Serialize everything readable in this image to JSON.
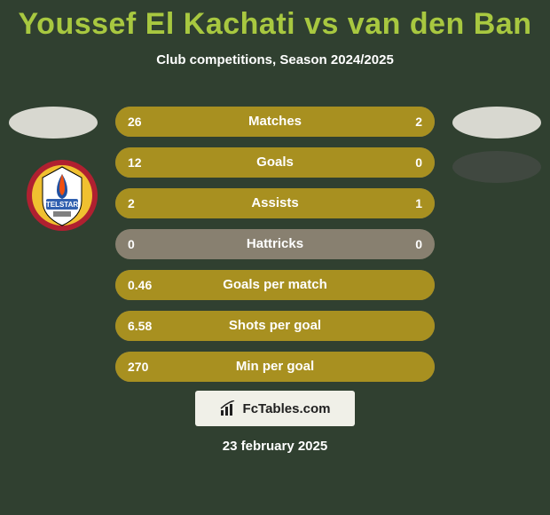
{
  "header": {
    "title": "Youssef El Kachati vs van den Ban",
    "subtitle": "Club competitions, Season 2024/2025"
  },
  "colors": {
    "page_bg": "#304030",
    "title_color": "#a8c840",
    "bar_fill": "#a89020",
    "bar_bg": "#888070",
    "badge_bg": "#d8d8d0",
    "club_badge_right_bg": "#404840",
    "watermark_bg": "#f0f0e8",
    "text": "#ffffff"
  },
  "club_logo_left": {
    "outer": "#b02030",
    "mid": "#f0c030",
    "inner_bg": "#ffffff",
    "flame_blue": "#2050a0",
    "flame_orange": "#f05010",
    "banner": "#3060b0",
    "banner_text": "TELSTAR"
  },
  "stats": [
    {
      "label": "Matches",
      "left_val": "26",
      "right_val": "2",
      "left_pct": 92.9,
      "right_pct": 7.1
    },
    {
      "label": "Goals",
      "left_val": "12",
      "right_val": "0",
      "left_pct": 100,
      "right_pct": 0
    },
    {
      "label": "Assists",
      "left_val": "2",
      "right_val": "1",
      "left_pct": 66.7,
      "right_pct": 33.3
    },
    {
      "label": "Hattricks",
      "left_val": "0",
      "right_val": "0",
      "left_pct": 0,
      "right_pct": 0
    },
    {
      "label": "Goals per match",
      "left_val": "0.46",
      "right_val": "",
      "left_pct": 100,
      "right_pct": 0
    },
    {
      "label": "Shots per goal",
      "left_val": "6.58",
      "right_val": "",
      "left_pct": 100,
      "right_pct": 0
    },
    {
      "label": "Min per goal",
      "left_val": "270",
      "right_val": "",
      "left_pct": 100,
      "right_pct": 0
    }
  ],
  "watermark": {
    "text": "FcTables.com"
  },
  "footer": {
    "date": "23 february 2025"
  }
}
